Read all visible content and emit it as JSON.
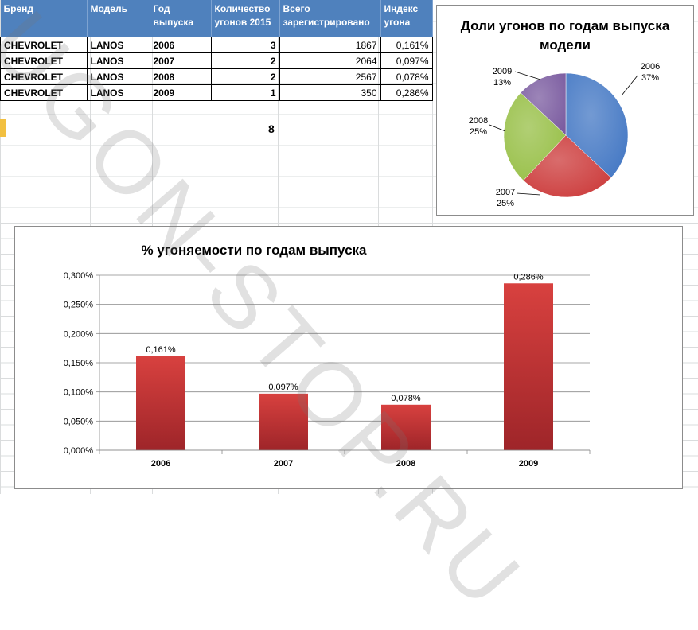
{
  "table": {
    "headers": [
      "Бренд",
      "Модель",
      "Год выпуска",
      "Количество угонов 2015",
      "Всего зарегистрировано",
      "Индекс угона"
    ],
    "rows": [
      [
        "CHEVROLET",
        "LANOS",
        "2006",
        "3",
        "1867",
        "0,161%"
      ],
      [
        "CHEVROLET",
        "LANOS",
        "2007",
        "2",
        "2064",
        "0,097%"
      ],
      [
        "CHEVROLET",
        "LANOS",
        "2008",
        "2",
        "2567",
        "0,078%"
      ],
      [
        "CHEVROLET",
        "LANOS",
        "2009",
        "1",
        "350",
        "0,286%"
      ]
    ],
    "total": "8"
  },
  "watermark": "UGON-STOP.RU",
  "colors": {
    "header_bg": "#4f81bd",
    "bar": "#c0383a",
    "pie": [
      "#4478c4",
      "#cc3b3b",
      "#97bf46",
      "#7b5ca0"
    ]
  },
  "chart_data": [
    {
      "type": "pie",
      "title": "Доли угонов по годам выпуска модели",
      "categories": [
        "2006",
        "2007",
        "2008",
        "2009"
      ],
      "values": [
        37,
        25,
        25,
        13
      ],
      "labels": [
        "2006\n37%",
        "2007\n25%",
        "2008\n25%",
        "2009\n13%"
      ]
    },
    {
      "type": "bar",
      "title": "% угоняемости по годам выпуска",
      "categories": [
        "2006",
        "2007",
        "2008",
        "2009"
      ],
      "values": [
        0.161,
        0.097,
        0.078,
        0.286
      ],
      "data_labels": [
        "0,161%",
        "0,097%",
        "0,078%",
        "0,286%"
      ],
      "yticks": [
        "0,000%",
        "0,050%",
        "0,100%",
        "0,150%",
        "0,200%",
        "0,250%",
        "0,300%"
      ],
      "ylim": [
        0,
        0.3
      ],
      "grid": true
    }
  ]
}
